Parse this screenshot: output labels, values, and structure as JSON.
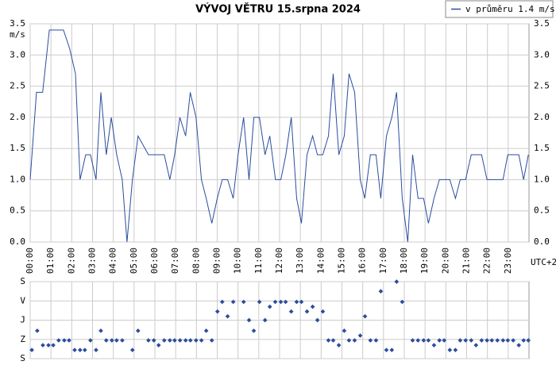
{
  "chart_data": [
    {
      "type": "line",
      "title": "VÝVOJ VĚTRU  15.srpna 2024",
      "y_label": "m/s",
      "x_label": "UTC+2",
      "grid": true,
      "xlim": [
        0,
        24
      ],
      "xticks": [
        {
          "value": 0,
          "label": "00:00"
        },
        {
          "value": 1,
          "label": "01:00"
        },
        {
          "value": 2,
          "label": "02:00"
        },
        {
          "value": 3,
          "label": "03:00"
        },
        {
          "value": 4,
          "label": "04:00"
        },
        {
          "value": 5,
          "label": "05:00"
        },
        {
          "value": 6,
          "label": "06:00"
        },
        {
          "value": 7,
          "label": "07:00"
        },
        {
          "value": 8,
          "label": "08:00"
        },
        {
          "value": 9,
          "label": "09:00"
        },
        {
          "value": 10,
          "label": "10:00"
        },
        {
          "value": 11,
          "label": "11:00"
        },
        {
          "value": 12,
          "label": "12:00"
        },
        {
          "value": 13,
          "label": "13:00"
        },
        {
          "value": 14,
          "label": "14:00"
        },
        {
          "value": 15,
          "label": "15:00"
        },
        {
          "value": 16,
          "label": "16:00"
        },
        {
          "value": 17,
          "label": "17:00"
        },
        {
          "value": 18,
          "label": "18:00"
        },
        {
          "value": 19,
          "label": "19:00"
        },
        {
          "value": 20,
          "label": "20:00"
        },
        {
          "value": 21,
          "label": "21:00"
        },
        {
          "value": 22,
          "label": "22:00"
        },
        {
          "value": 23,
          "label": "23:00"
        }
      ],
      "ylim": [
        0,
        3.5
      ],
      "yticks": [
        {
          "value": 0,
          "label": "0.0"
        },
        0.5,
        {
          "value": 1,
          "label": "1.0"
        },
        1.5,
        {
          "value": 2,
          "label": "2.0"
        },
        2.5,
        {
          "value": 3,
          "label": "3.0"
        },
        3.5
      ],
      "series": [
        {
          "name": "v průměru 1.4 m/s",
          "color": "#2a4da0",
          "x": [
            0,
            0.3,
            0.6,
            0.92,
            1.6,
            1.9,
            2.18,
            2.4,
            2.67,
            2.9,
            3.17,
            3.4,
            3.66,
            3.9,
            4.16,
            4.43,
            4.66,
            4.92,
            5.19,
            5.69,
            6.45,
            6.72,
            6.95,
            7.2,
            7.48,
            7.7,
            7.98,
            8.24,
            8.47,
            8.74,
            9.0,
            9.24,
            9.5,
            9.77,
            10.0,
            10.27,
            10.53,
            10.76,
            11.03,
            11.3,
            11.53,
            11.8,
            12.06,
            12.3,
            12.56,
            12.82,
            13.05,
            13.32,
            13.59,
            13.82,
            14.08,
            14.35,
            14.58,
            14.85,
            15.11,
            15.34,
            15.61,
            15.88,
            16.1,
            16.37,
            16.64,
            16.87,
            17.14,
            17.4,
            17.63,
            17.9,
            18.17,
            18.4,
            18.66,
            18.93,
            19.16,
            19.43,
            19.69,
            20.19,
            20.46,
            20.69,
            20.95,
            21.22,
            21.72,
            21.98,
            22.75,
            22.98,
            23.51,
            23.74,
            23.97
          ],
          "values": [
            1.0,
            2.4,
            2.4,
            3.4,
            3.4,
            3.1,
            2.7,
            1.0,
            1.4,
            1.4,
            1.0,
            2.4,
            1.4,
            2.0,
            1.4,
            1.0,
            0,
            1.0,
            1.7,
            1.4,
            1.4,
            1.0,
            1.4,
            2.0,
            1.7,
            2.4,
            2.0,
            1.0,
            0.7,
            0.3,
            0.7,
            1.0,
            1.0,
            0.7,
            1.4,
            2.0,
            1.0,
            2.0,
            2.0,
            1.4,
            1.7,
            1.0,
            1.0,
            1.4,
            2.0,
            0.7,
            0.3,
            1.4,
            1.7,
            1.4,
            1.4,
            1.7,
            2.7,
            1.4,
            1.7,
            2.7,
            2.4,
            1.0,
            0.7,
            1.4,
            1.4,
            0.7,
            1.7,
            2.0,
            2.4,
            0.7,
            0,
            1.4,
            0.7,
            0.7,
            0.3,
            0.7,
            1.0,
            1.0,
            0.7,
            1.0,
            1.0,
            1.4,
            1.4,
            1.0,
            1.0,
            1.4,
            1.4,
            1.0,
            1.4
          ]
        }
      ]
    },
    {
      "type": "scatter",
      "grid": true,
      "color": "#2a4da0",
      "xlim": [
        0,
        24
      ],
      "ylim": [
        0,
        4
      ],
      "yticks": [
        {
          "value": 0,
          "label": "S"
        },
        {
          "value": 1,
          "label": "Z"
        },
        {
          "value": 2,
          "label": "J"
        },
        {
          "value": 3,
          "label": "V"
        },
        {
          "value": 4,
          "label": "S"
        }
      ],
      "x": [
        0.08,
        0.34,
        0.61,
        0.88,
        1.11,
        1.37,
        1.64,
        1.87,
        2.14,
        2.4,
        2.63,
        2.9,
        3.17,
        3.4,
        3.66,
        3.93,
        4.16,
        4.43,
        4.92,
        5.19,
        5.69,
        5.95,
        6.18,
        6.45,
        6.72,
        6.95,
        7.21,
        7.48,
        7.71,
        7.98,
        8.24,
        8.47,
        8.74,
        9.01,
        9.24,
        9.5,
        9.77,
        10.27,
        10.53,
        10.76,
        11.03,
        11.3,
        11.53,
        11.79,
        12.06,
        12.29,
        12.56,
        12.82,
        13.05,
        13.32,
        13.59,
        13.82,
        14.08,
        14.35,
        14.58,
        14.85,
        15.11,
        15.34,
        15.61,
        15.88,
        16.11,
        16.37,
        16.64,
        16.87,
        17.14,
        17.4,
        17.63,
        17.9,
        18.4,
        18.66,
        18.93,
        19.16,
        19.43,
        19.69,
        19.92,
        20.19,
        20.46,
        20.69,
        20.95,
        21.22,
        21.45,
        21.72,
        21.98,
        22.21,
        22.48,
        22.75,
        22.98,
        23.24,
        23.51,
        23.74,
        23.97
      ],
      "values": [
        0.45,
        1.45,
        0.7,
        0.7,
        0.7,
        0.95,
        0.95,
        0.95,
        0.45,
        0.45,
        0.45,
        0.95,
        0.45,
        1.45,
        0.95,
        0.95,
        0.95,
        0.95,
        0.45,
        1.45,
        0.95,
        0.95,
        0.7,
        0.95,
        0.95,
        0.95,
        0.95,
        0.95,
        0.95,
        0.95,
        0.95,
        1.45,
        0.95,
        2.45,
        2.95,
        2.2,
        2.95,
        2.95,
        2.0,
        1.45,
        2.95,
        2.0,
        2.7,
        2.95,
        2.95,
        2.95,
        2.45,
        2.95,
        2.95,
        2.45,
        2.7,
        2.0,
        2.45,
        0.95,
        0.95,
        0.7,
        1.45,
        0.95,
        0.95,
        1.2,
        2.2,
        0.95,
        0.95,
        3.5,
        0.45,
        0.45,
        4.0,
        2.95,
        0.95,
        0.95,
        0.95,
        0.95,
        0.7,
        0.95,
        0.95,
        0.45,
        0.45,
        0.95,
        0.95,
        0.95,
        0.7,
        0.95,
        0.95,
        0.95,
        0.95,
        0.95,
        0.95,
        0.95,
        0.7,
        0.95,
        0.95
      ]
    }
  ]
}
